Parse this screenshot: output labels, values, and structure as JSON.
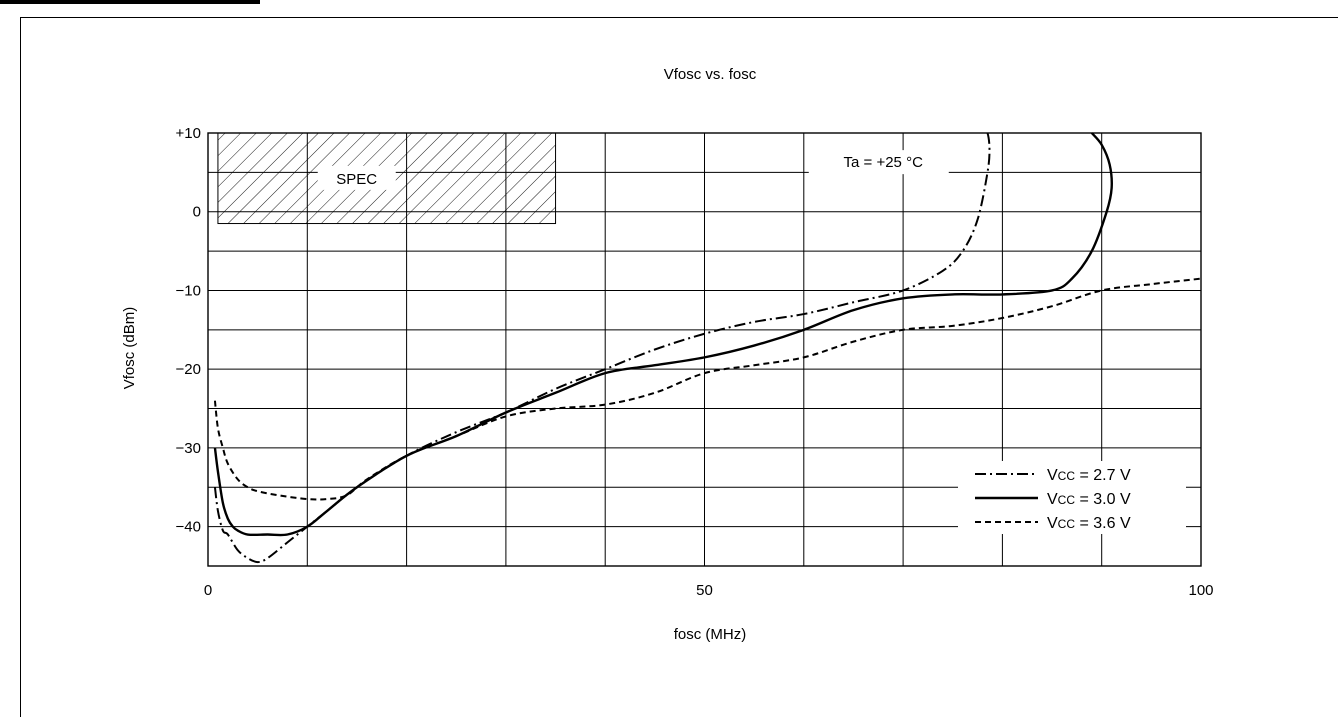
{
  "chart_data": {
    "type": "line",
    "title": "Vfosc vs. fosc",
    "xlabel": "fosc (MHz)",
    "ylabel": "Vfosc (dBm)",
    "xlim": [
      0,
      100
    ],
    "ylim": [
      -45,
      10
    ],
    "grid": true,
    "x_ticks": [
      {
        "value": 0,
        "label": "0"
      },
      {
        "value": 50,
        "label": "50"
      },
      {
        "value": 100,
        "label": "100"
      }
    ],
    "y_ticks": [
      {
        "value": 10,
        "label": "+10"
      },
      {
        "value": 0,
        "label": "0"
      },
      {
        "value": -10,
        "label": "−10"
      },
      {
        "value": -20,
        "label": "−20"
      },
      {
        "value": -30,
        "label": "−30"
      },
      {
        "value": -40,
        "label": "−40"
      }
    ],
    "annotation": "Ta = +25 °C",
    "spec_region": {
      "label": "SPEC",
      "x": [
        1,
        35
      ],
      "y": [
        -1.5,
        10
      ]
    },
    "legend_position": "bottom-right",
    "series": [
      {
        "name": "VCC = 2.7 V",
        "legend": {
          "prefix": "V",
          "sub": "CC",
          "suffix": " = 2.7 V"
        },
        "style": "dash-dot",
        "x": [
          0.7,
          1,
          1.5,
          2,
          3,
          4,
          5,
          6,
          8,
          10,
          12,
          15,
          20,
          25,
          30,
          35,
          40,
          45,
          50,
          55,
          60,
          65,
          70,
          74,
          76,
          77.5,
          78.5,
          78.7,
          78.5,
          78.2
        ],
        "y": [
          -35,
          -38,
          -40.5,
          -41,
          -43,
          -44,
          -44.5,
          -44,
          -42,
          -40,
          -38,
          -35,
          -31,
          -28,
          -25.5,
          -22.5,
          -20,
          -17.5,
          -15.5,
          -14,
          -13,
          -11.5,
          -10,
          -7.5,
          -5,
          -1,
          5,
          8,
          10,
          10
        ]
      },
      {
        "name": "VCC = 3.0 V",
        "legend": {
          "prefix": "V",
          "sub": "CC",
          "suffix": " = 3.0 V"
        },
        "style": "solid",
        "x": [
          0.7,
          1,
          1.5,
          2,
          2.5,
          3,
          4,
          6,
          8,
          10,
          12,
          15,
          20,
          25,
          30,
          35,
          40,
          45,
          50,
          55,
          60,
          65,
          70,
          75,
          80,
          85,
          87,
          89,
          90.5,
          91,
          90.8,
          90,
          89
        ],
        "y": [
          -30,
          -33,
          -37,
          -39,
          -40,
          -40.5,
          -41,
          -41,
          -41,
          -40,
          -38,
          -35,
          -31,
          -28.5,
          -25.5,
          -23,
          -20.5,
          -19.5,
          -18.5,
          -17,
          -15,
          -12.5,
          -11,
          -10.5,
          -10.5,
          -10,
          -8.5,
          -5,
          0,
          3,
          6,
          8.5,
          10
        ]
      },
      {
        "name": "VCC = 3.6 V",
        "legend": {
          "prefix": "V",
          "sub": "CC",
          "suffix": " = 3.6 V"
        },
        "style": "dashed",
        "x": [
          0.7,
          1,
          1.5,
          2,
          3,
          4,
          5,
          7,
          10,
          12,
          14,
          16,
          20,
          25,
          30,
          35,
          40,
          45,
          50,
          55,
          60,
          65,
          70,
          75,
          80,
          85,
          90,
          95,
          100
        ],
        "y": [
          -24,
          -27.5,
          -30,
          -32,
          -34,
          -35,
          -35.5,
          -36,
          -36.5,
          -36.5,
          -36,
          -34,
          -31,
          -28.5,
          -26,
          -25,
          -24.5,
          -23,
          -20.5,
          -19.5,
          -18.5,
          -16.5,
          -15,
          -14.5,
          -13.5,
          -12,
          -10,
          -9.2,
          -8.5
        ]
      }
    ]
  }
}
